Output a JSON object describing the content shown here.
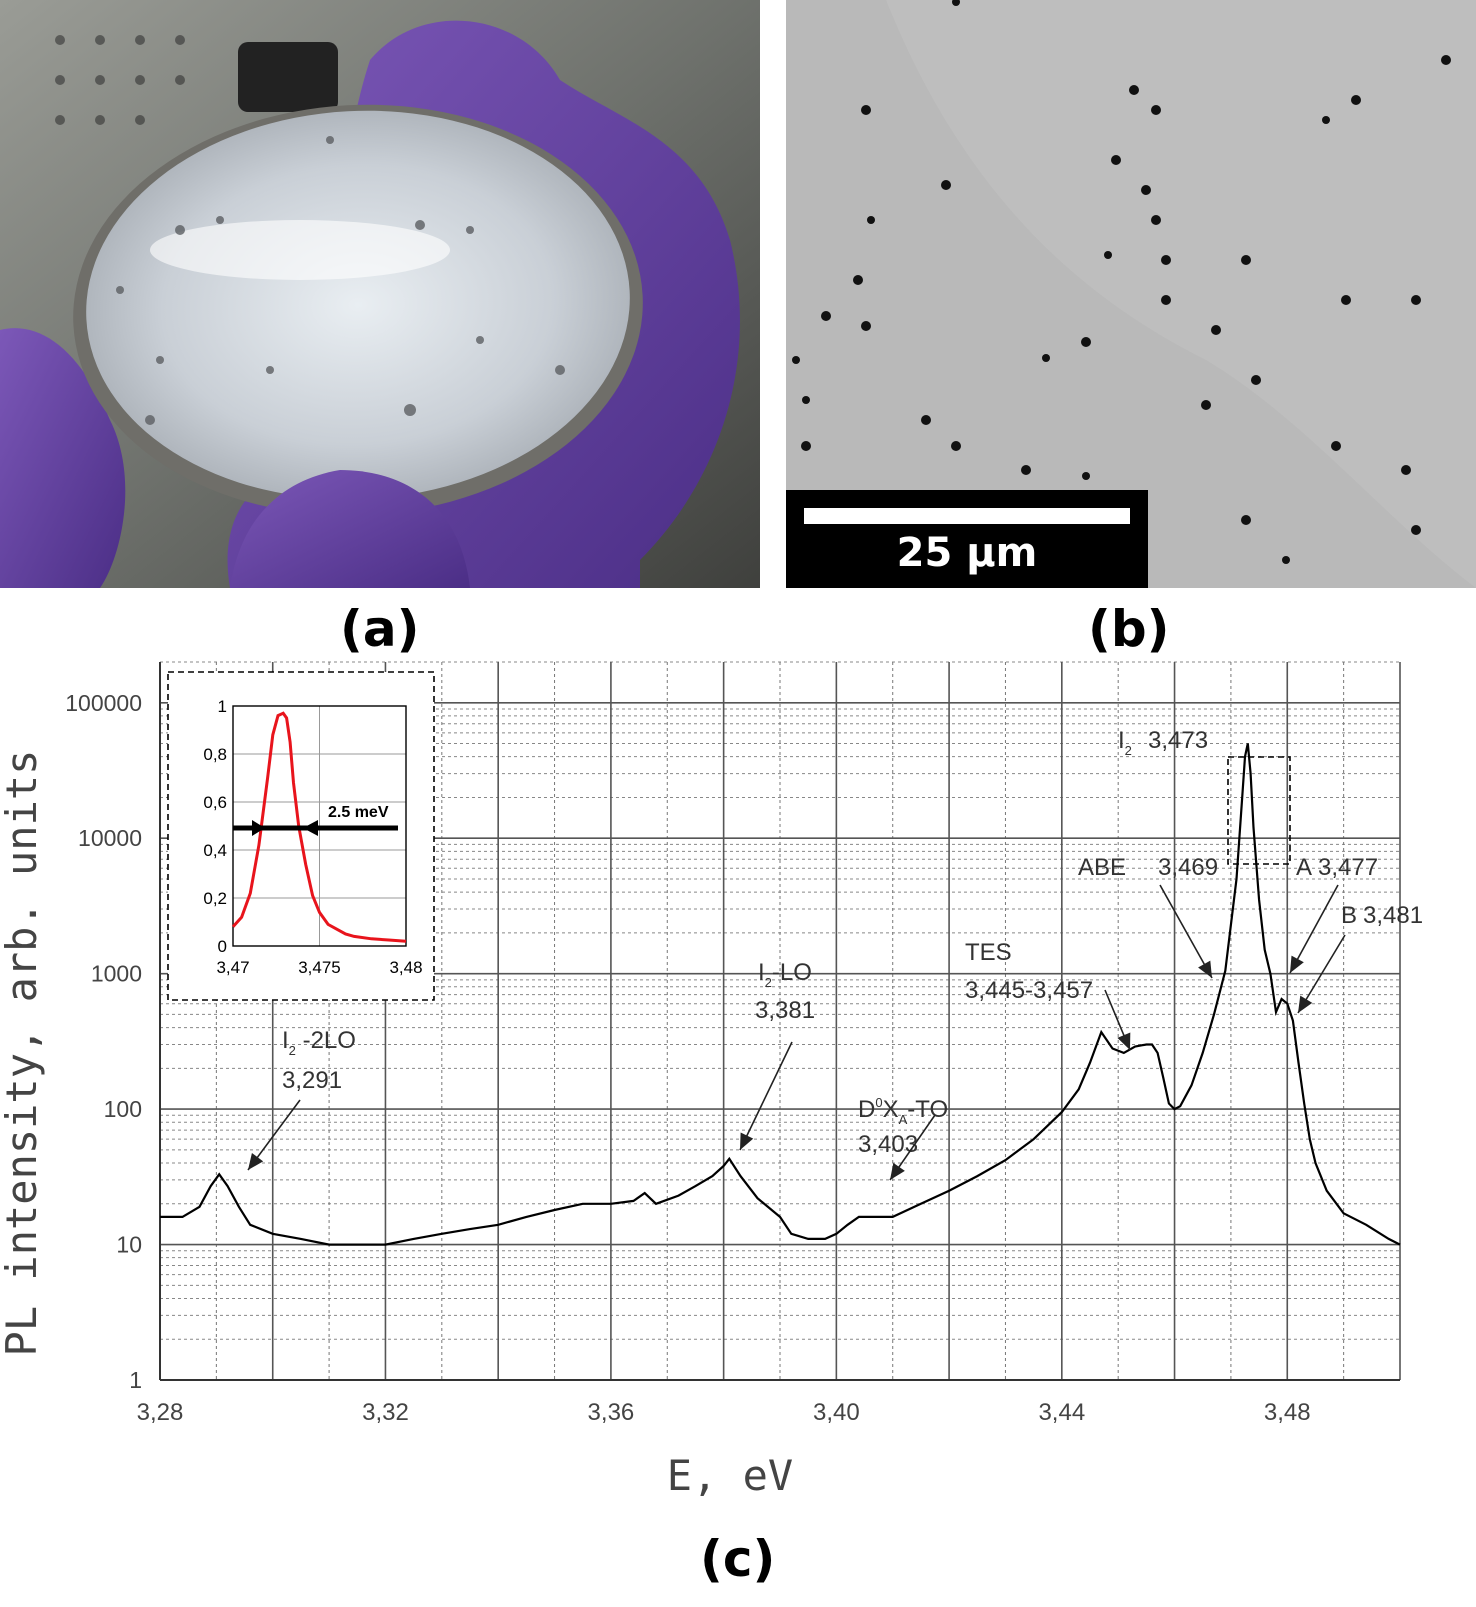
{
  "panels": {
    "a": {
      "label": "(a)"
    },
    "b": {
      "label": "(b)",
      "scale_bar": "25 µm"
    },
    "c": {
      "label": "(c)"
    }
  },
  "chart_data": {
    "type": "line",
    "xlabel": "E, eV",
    "ylabel": "PL intensity, arb. units",
    "xlim": [
      3.28,
      3.5
    ],
    "ylim": [
      1,
      200000
    ],
    "yscale": "log",
    "grid": true,
    "x_ticks": [
      "3,28",
      "3,32",
      "3,36",
      "3,40",
      "3,44",
      "3,48"
    ],
    "x_tick_values": [
      3.28,
      3.32,
      3.36,
      3.4,
      3.44,
      3.48
    ],
    "y_ticks": [
      "1",
      "10",
      "100",
      "1000",
      "10000",
      "100000"
    ],
    "y_tick_values": [
      1,
      10,
      100,
      1000,
      10000,
      100000
    ],
    "series": [
      {
        "x": [
          3.28,
          3.284,
          3.287,
          3.289,
          3.2905,
          3.292,
          3.294,
          3.296,
          3.3,
          3.305,
          3.31,
          3.315,
          3.32,
          3.325,
          3.33,
          3.335,
          3.34,
          3.345,
          3.35,
          3.355,
          3.36,
          3.364,
          3.366,
          3.368,
          3.372,
          3.375,
          3.378,
          3.38,
          3.381,
          3.383,
          3.386,
          3.39,
          3.392,
          3.395,
          3.398,
          3.4,
          3.402,
          3.404,
          3.406,
          3.41,
          3.415,
          3.42,
          3.425,
          3.43,
          3.435,
          3.44,
          3.443,
          3.445,
          3.447,
          3.449,
          3.451,
          3.453,
          3.455,
          3.456,
          3.457,
          3.458,
          3.459,
          3.46,
          3.461,
          3.463,
          3.465,
          3.467,
          3.469,
          3.471,
          3.472,
          3.4725,
          3.473,
          3.4735,
          3.474,
          3.475,
          3.476,
          3.477,
          3.478,
          3.479,
          3.48,
          3.481,
          3.482,
          3.483,
          3.484,
          3.485,
          3.487,
          3.49,
          3.494,
          3.498,
          3.5
        ],
        "y": [
          16,
          16,
          19,
          27,
          33,
          27,
          19,
          14,
          12,
          11,
          10,
          10,
          10,
          11,
          12,
          13,
          14,
          16,
          18,
          20,
          20,
          21,
          24,
          20,
          23,
          27,
          32,
          38,
          43,
          32,
          22,
          16,
          12,
          11,
          11,
          12,
          14,
          16,
          16,
          16,
          20,
          25,
          32,
          42,
          60,
          95,
          140,
          220,
          370,
          280,
          260,
          290,
          300,
          300,
          260,
          170,
          110,
          100,
          105,
          150,
          260,
          500,
          1050,
          5000,
          20000,
          40000,
          50000,
          30000,
          12000,
          3500,
          1500,
          1000,
          520,
          650,
          600,
          450,
          220,
          110,
          60,
          40,
          25,
          17,
          14,
          11,
          10
        ]
      }
    ],
    "annotations": [
      {
        "text_main": "I",
        "sub": "2",
        "text_rest": " -2LO",
        "value": "3,291"
      },
      {
        "text_main": "I",
        "sub": "2",
        "text_rest": "-LO",
        "value": "3,381"
      },
      {
        "text_main": "D",
        "sup": "0",
        "text_mid": "X",
        "sub": "A",
        "text_rest": "-TO",
        "value": "3,403"
      },
      {
        "text_main": "TES",
        "value": "3,445-3,457"
      },
      {
        "text_main": "ABE",
        "value": "3,469"
      },
      {
        "text_main": "I",
        "sub": "2",
        "value": "3,473"
      },
      {
        "text_main": "A",
        "value": "3,477"
      },
      {
        "text_main": "B",
        "value": "3,481"
      }
    ],
    "inset": {
      "type": "line",
      "color": "#e8141c",
      "xlim": [
        3.47,
        3.48
      ],
      "ylim": [
        0,
        1
      ],
      "x_ticks": [
        "3,47",
        "3,475",
        "3,48"
      ],
      "x_tick_values": [
        3.47,
        3.475,
        3.48
      ],
      "y_ticks": [
        "0",
        "0,2",
        "0,4",
        "0,6",
        "0,8",
        "1"
      ],
      "y_tick_values": [
        0,
        0.2,
        0.4,
        0.6,
        0.8,
        1
      ],
      "fwhm_label": "2.5 meV",
      "x": [
        3.47,
        3.4705,
        3.471,
        3.4715,
        3.472,
        3.4723,
        3.4726,
        3.4729,
        3.4731,
        3.4733,
        3.4735,
        3.4738,
        3.4742,
        3.4746,
        3.475,
        3.4755,
        3.476,
        3.4765,
        3.477,
        3.478,
        3.479,
        3.48
      ],
      "y": [
        0.08,
        0.12,
        0.22,
        0.42,
        0.7,
        0.88,
        0.96,
        0.97,
        0.95,
        0.85,
        0.68,
        0.5,
        0.34,
        0.21,
        0.14,
        0.09,
        0.07,
        0.05,
        0.04,
        0.03,
        0.025,
        0.02
      ]
    }
  }
}
